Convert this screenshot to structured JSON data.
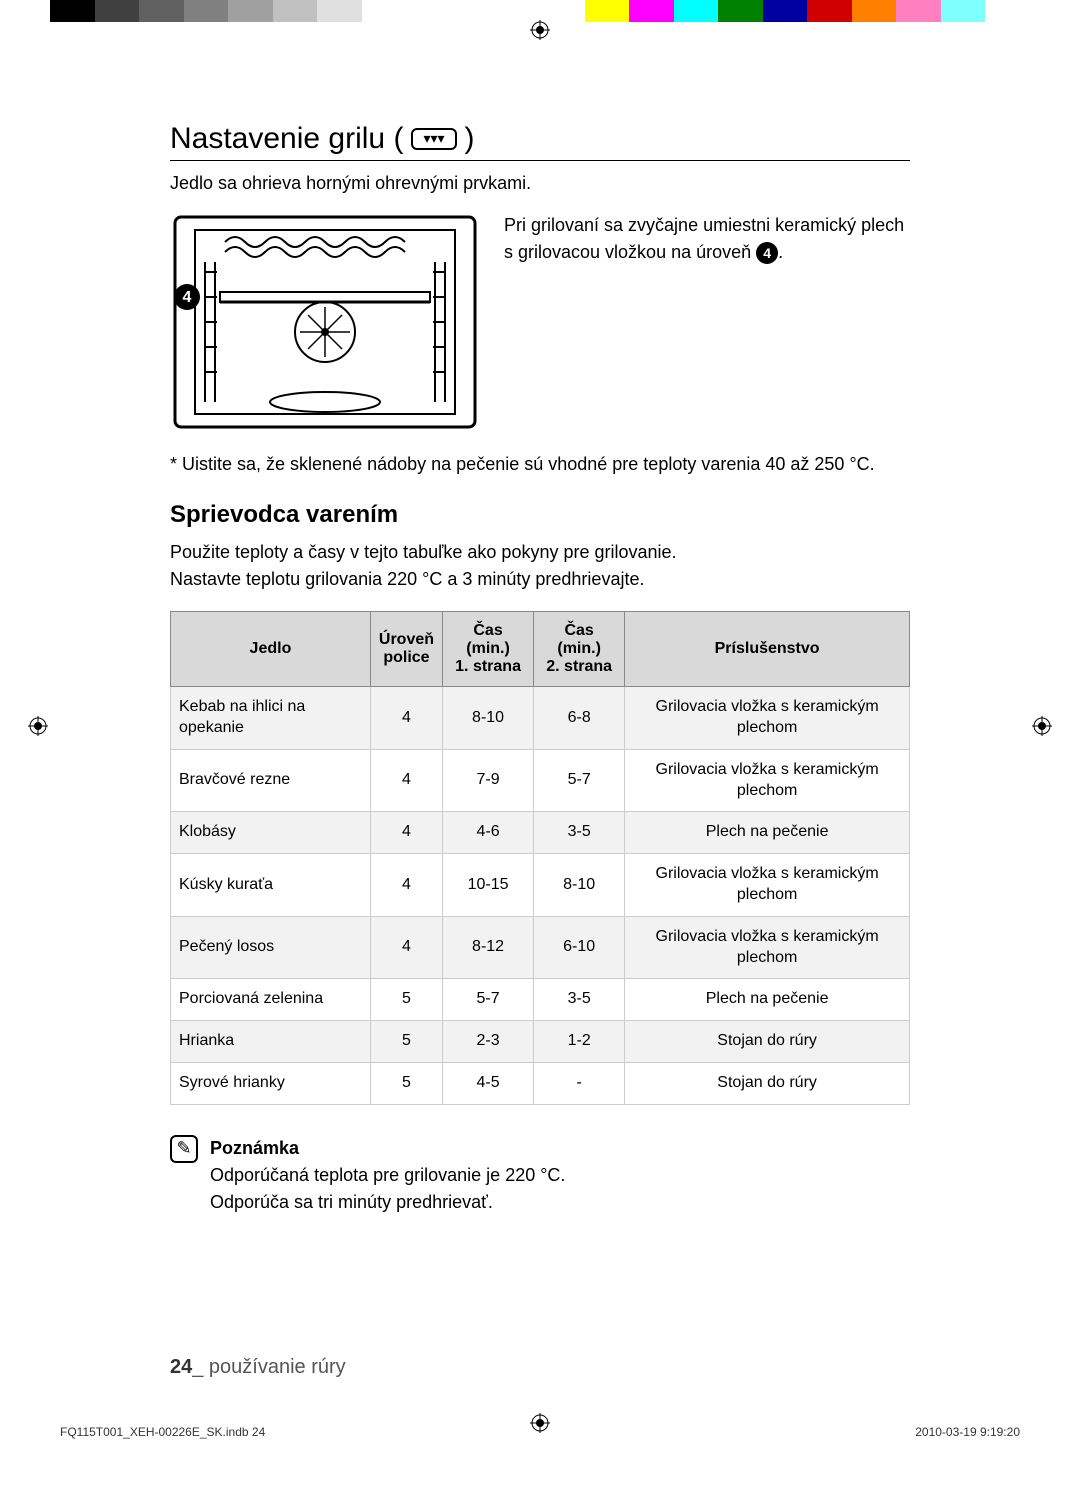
{
  "colorBar": [
    "#000000",
    "#404040",
    "#606060",
    "#808080",
    "#a0a0a0",
    "#c0c0c0",
    "#e0e0e0",
    "#ffffff",
    "#ffffff",
    "#ffffff",
    "#ffffff",
    "#ffffff",
    "#ffff00",
    "#ff00ff",
    "#00ffff",
    "#008000",
    "#0000a0",
    "#d00000",
    "#ff8000",
    "#ff80c0",
    "#80ffff",
    "#ffffff"
  ],
  "title": "Nastavenie grilu (",
  "titleClose": ")",
  "grillIconGlyph": "▾▾▾",
  "intro": "Jedlo sa ohrieva hornými ohrevnými prvkami.",
  "figureCaptionBefore": "Pri grilovaní sa zvyčajne umiestni keramický plech s grilovacou vložkou na úroveň ",
  "figureLevel": "4",
  "figureCaptionAfter": ".",
  "footnote": "* Uistite sa, že sklenené nádoby na pečenie sú vhodné pre teploty varenia 40 až 250 °C.",
  "subheading": "Sprievodca varením",
  "guideIntro": "Použite teploty a časy v tejto tabuľke ako pokyny pre grilovanie.\nNastavte teplotu grilovania 220 °C a 3 minúty predhrievajte.",
  "table": {
    "headers": [
      "Jedlo",
      "Úroveň police",
      "Čas (min.) 1. strana",
      "Čas (min.) 2. strana",
      "Príslušenstvo"
    ],
    "rows": [
      [
        "Kebab na ihlici na opekanie",
        "4",
        "8-10",
        "6-8",
        "Grilovacia vložka s keramickým plechom"
      ],
      [
        "Bravčové rezne",
        "4",
        "7-9",
        "5-7",
        "Grilovacia vložka s keramickým plechom"
      ],
      [
        "Klobásy",
        "4",
        "4-6",
        "3-5",
        "Plech na pečenie"
      ],
      [
        "Kúsky kuraťa",
        "4",
        "10-15",
        "8-10",
        "Grilovacia vložka s keramickým plechom"
      ],
      [
        "Pečený losos",
        "4",
        "8-12",
        "6-10",
        "Grilovacia vložka s keramickým plechom"
      ],
      [
        "Porciovaná zelenina",
        "5",
        "5-7",
        "3-5",
        "Plech na pečenie"
      ],
      [
        "Hrianka",
        "5",
        "2-3",
        "1-2",
        "Stojan do rúry"
      ],
      [
        "Syrové hrianky",
        "5",
        "4-5",
        "-",
        "Stojan do rúry"
      ]
    ]
  },
  "noteTitle": "Poznámka",
  "noteBody": "Odporúčaná teplota pre grilovanie je 220 °C.\nOdporúča sa tri minúty predhrievať.",
  "pageNumber": "24",
  "pageFooterText": "_ používanie rúry",
  "docFile": "FQ115T001_XEH-00226E_SK.indb   24",
  "docDate": "2010-03-19   9:19:20"
}
